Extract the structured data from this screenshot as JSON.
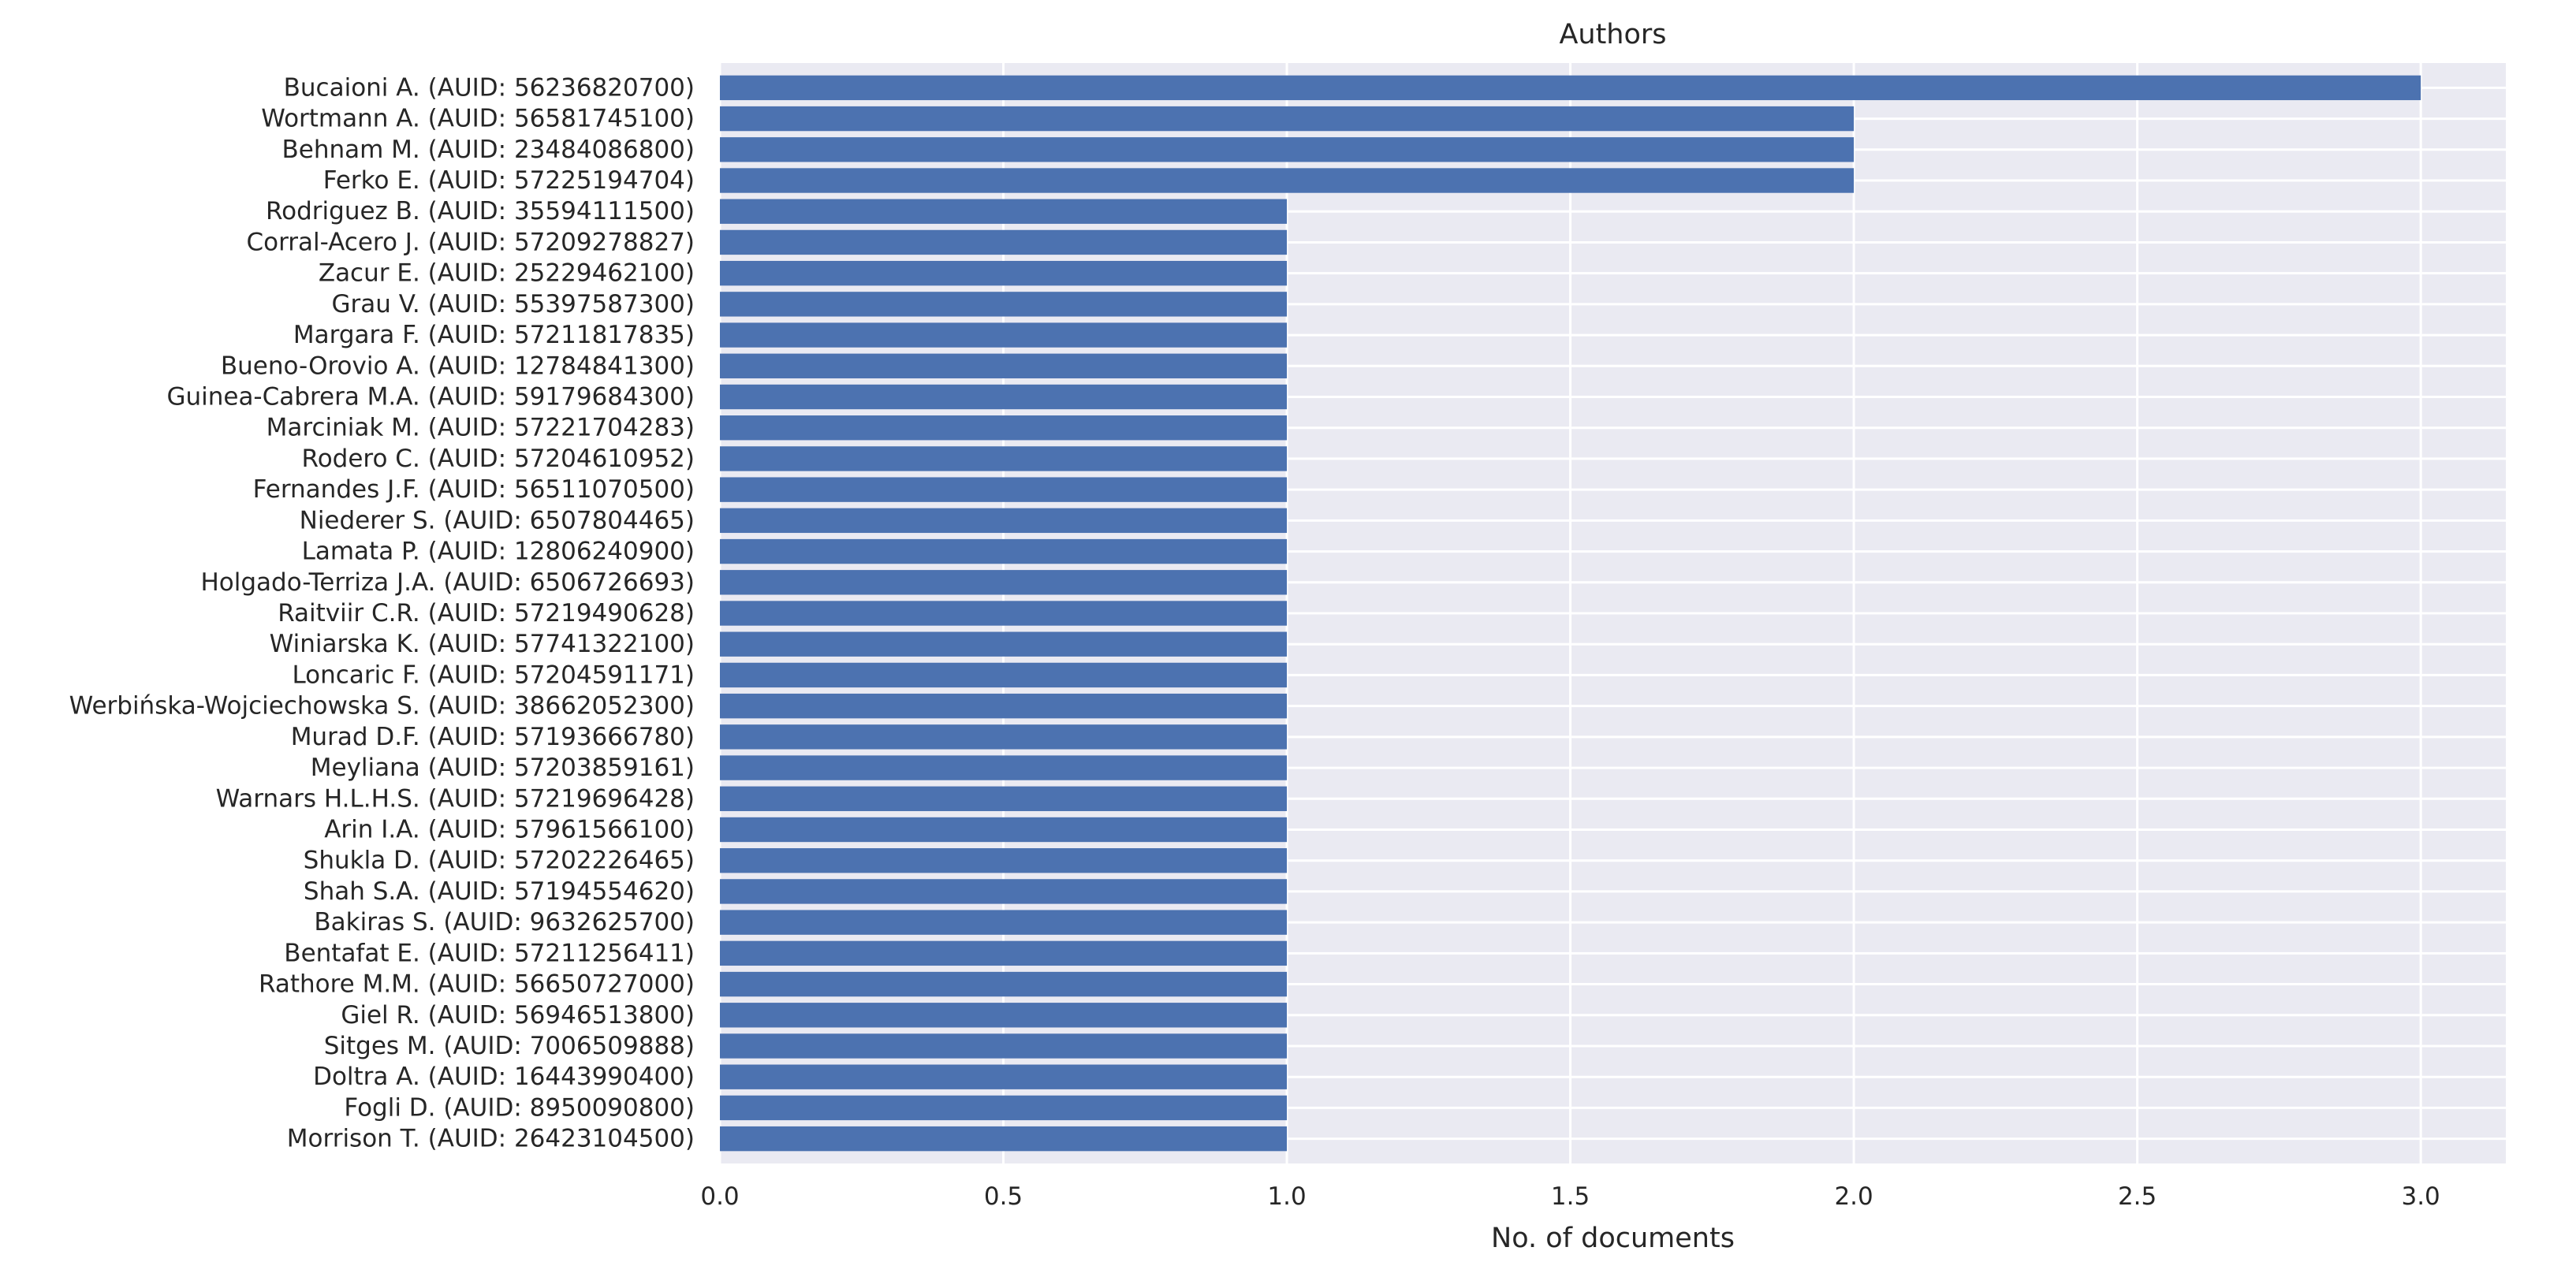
{
  "chart_data": {
    "type": "bar",
    "orientation": "horizontal",
    "title": "Authors",
    "xlabel": "No. of documents",
    "ylabel": "",
    "xlim": [
      0,
      3.15
    ],
    "xticks": [
      "0.0",
      "0.5",
      "1.0",
      "1.5",
      "2.0",
      "2.5",
      "3.0"
    ],
    "grid": true,
    "bar_color": "#4c72b0",
    "background_color": "#eaeaf2",
    "categories": [
      "Bucaioni A. (AUID: 56236820700)",
      "Wortmann A. (AUID: 56581745100)",
      "Behnam M. (AUID: 23484086800)",
      "Ferko E. (AUID: 57225194704)",
      "Rodriguez B. (AUID: 35594111500)",
      "Corral-Acero J. (AUID: 57209278827)",
      "Zacur E. (AUID: 25229462100)",
      "Grau V. (AUID: 55397587300)",
      "Margara F. (AUID: 57211817835)",
      "Bueno-Orovio A. (AUID: 12784841300)",
      "Guinea-Cabrera M.A. (AUID: 59179684300)",
      "Marciniak M. (AUID: 57221704283)",
      "Rodero C. (AUID: 57204610952)",
      "Fernandes J.F. (AUID: 56511070500)",
      "Niederer S. (AUID: 6507804465)",
      "Lamata P. (AUID: 12806240900)",
      "Holgado-Terriza J.A. (AUID: 6506726693)",
      "Raitviir C.R. (AUID: 57219490628)",
      "Winiarska K. (AUID: 57741322100)",
      "Loncaric F. (AUID: 57204591171)",
      "Werbińska-Wojciechowska S. (AUID: 38662052300)",
      "Murad D.F. (AUID: 57193666780)",
      "Meyliana (AUID: 57203859161)",
      "Warnars H.L.H.S. (AUID: 57219696428)",
      "Arin I.A. (AUID: 57961566100)",
      "Shukla D. (AUID: 57202226465)",
      "Shah S.A. (AUID: 57194554620)",
      "Bakiras S. (AUID: 9632625700)",
      "Bentafat E. (AUID: 57211256411)",
      "Rathore M.M. (AUID: 56650727000)",
      "Giel R. (AUID: 56946513800)",
      "Sitges M. (AUID: 7006509888)",
      "Doltra A. (AUID: 16443990400)",
      "Fogli D. (AUID: 8950090800)",
      "Morrison T. (AUID: 26423104500)"
    ],
    "values": [
      3,
      2,
      2,
      2,
      1,
      1,
      1,
      1,
      1,
      1,
      1,
      1,
      1,
      1,
      1,
      1,
      1,
      1,
      1,
      1,
      1,
      1,
      1,
      1,
      1,
      1,
      1,
      1,
      1,
      1,
      1,
      1,
      1,
      1,
      1
    ]
  }
}
